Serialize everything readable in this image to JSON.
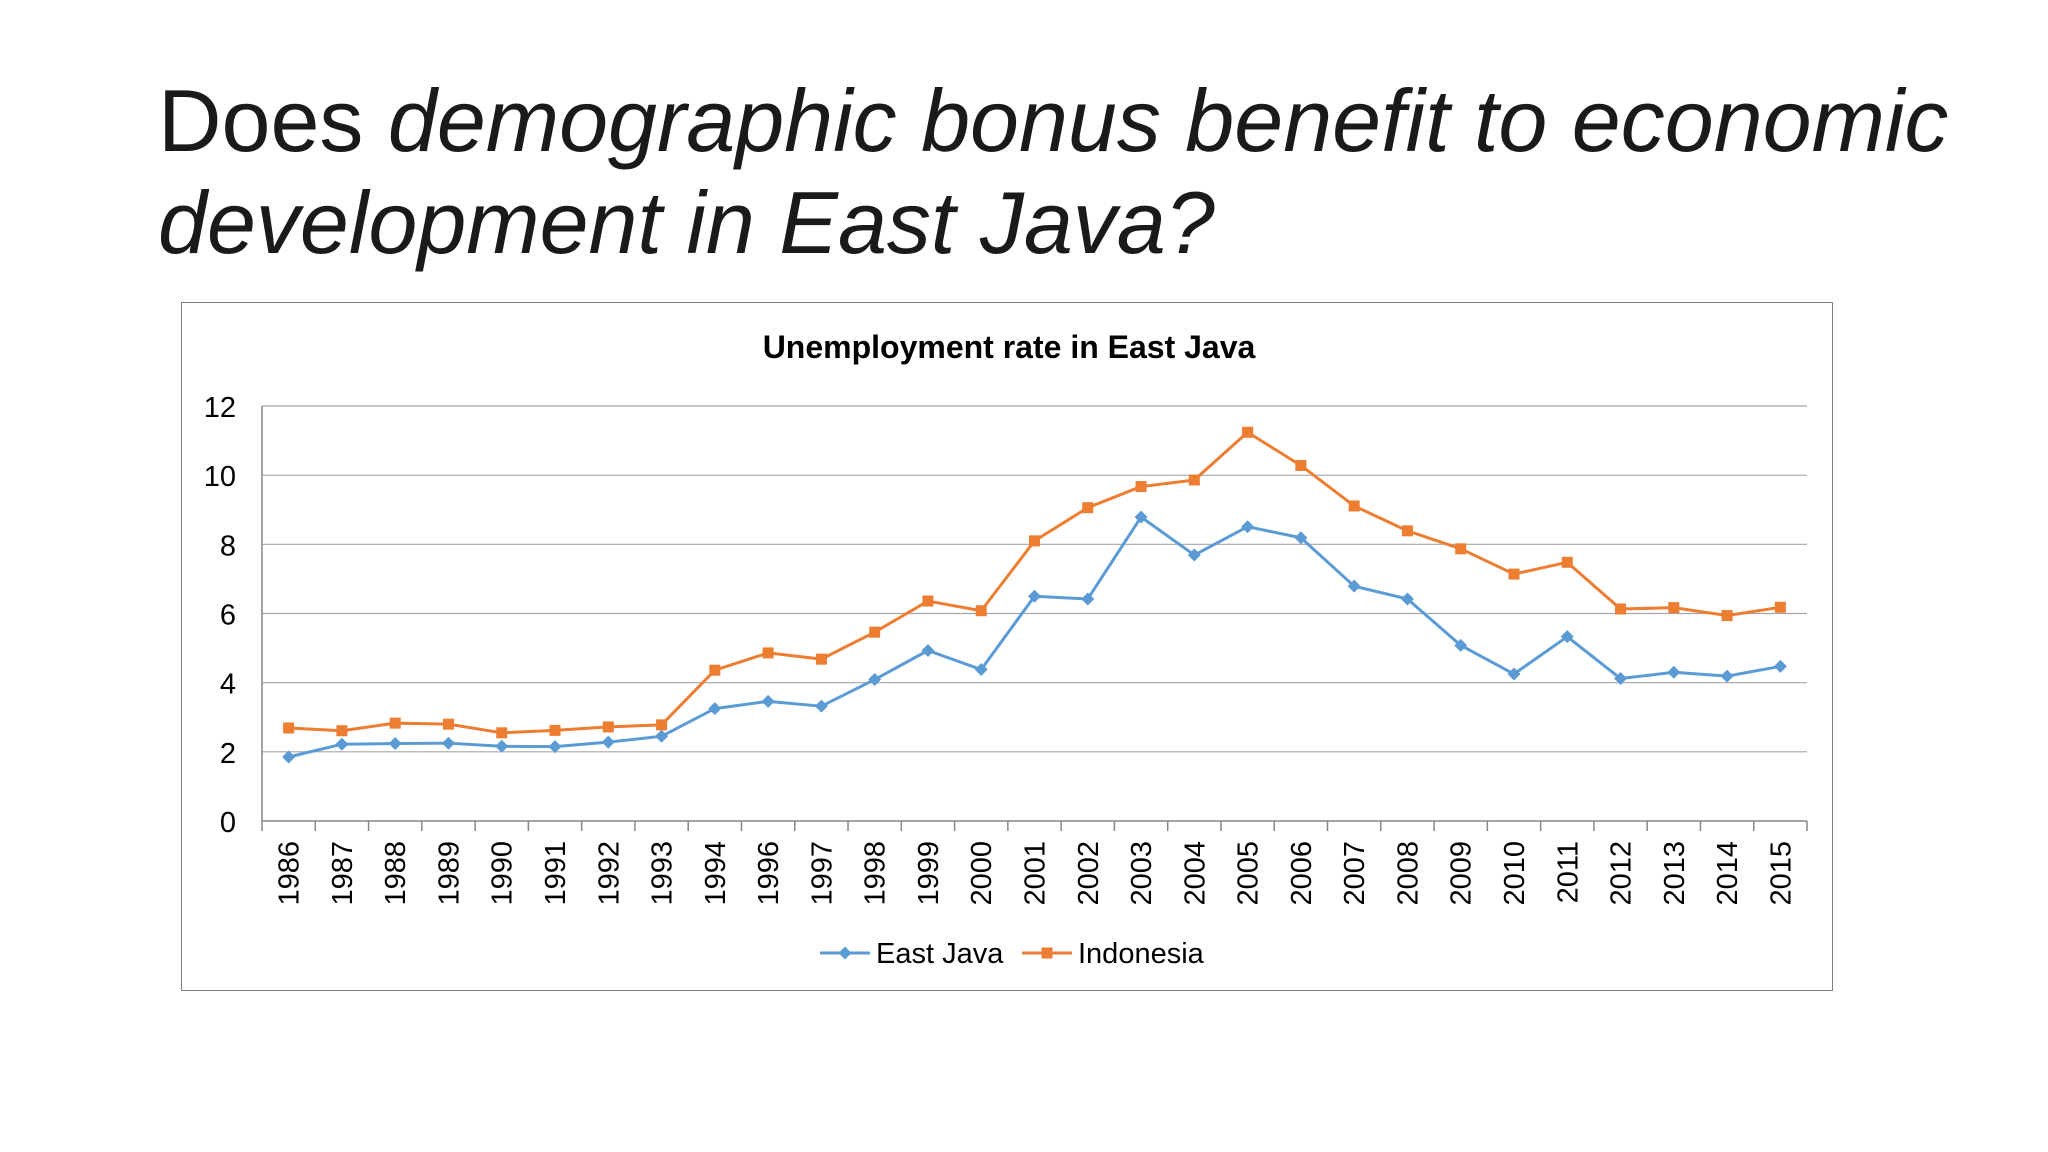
{
  "slide": {
    "title_part1": "Does ",
    "title_part2": "demographic bonus benefit to economic development in East Java?"
  },
  "chart_data": {
    "type": "line",
    "title": "Unemployment rate in East Java",
    "xlabel": "",
    "ylabel": "",
    "ylim": [
      0,
      12
    ],
    "yticks": [
      0,
      2,
      4,
      6,
      8,
      10,
      12
    ],
    "grid": true,
    "legend_position": "bottom",
    "categories": [
      "1986",
      "1987",
      "1988",
      "1989",
      "1990",
      "1991",
      "1992",
      "1993",
      "1994",
      "1996",
      "1997",
      "1998",
      "1999",
      "2000",
      "2001",
      "2002",
      "2003",
      "2004",
      "2005",
      "2006",
      "2007",
      "2008",
      "2009",
      "2010",
      "2011",
      "2012",
      "2013",
      "2014",
      "2015"
    ],
    "series": [
      {
        "name": "East Java",
        "color": "#5b9bd5",
        "marker": "diamond",
        "values": [
          1.85,
          2.22,
          2.24,
          2.25,
          2.16,
          2.15,
          2.28,
          2.45,
          3.25,
          3.46,
          3.32,
          4.09,
          4.93,
          4.38,
          6.5,
          6.42,
          8.79,
          7.69,
          8.51,
          8.19,
          6.79,
          6.42,
          5.08,
          4.25,
          5.33,
          4.12,
          4.3,
          4.19,
          4.47
        ]
      },
      {
        "name": "Indonesia",
        "color": "#ed7d31",
        "marker": "square",
        "values": [
          2.69,
          2.61,
          2.83,
          2.8,
          2.55,
          2.62,
          2.72,
          2.78,
          4.36,
          4.86,
          4.68,
          5.46,
          6.36,
          6.08,
          8.1,
          9.06,
          9.67,
          9.86,
          11.24,
          10.28,
          9.11,
          8.39,
          7.87,
          7.14,
          7.48,
          6.13,
          6.17,
          5.94,
          6.18
        ]
      }
    ]
  }
}
